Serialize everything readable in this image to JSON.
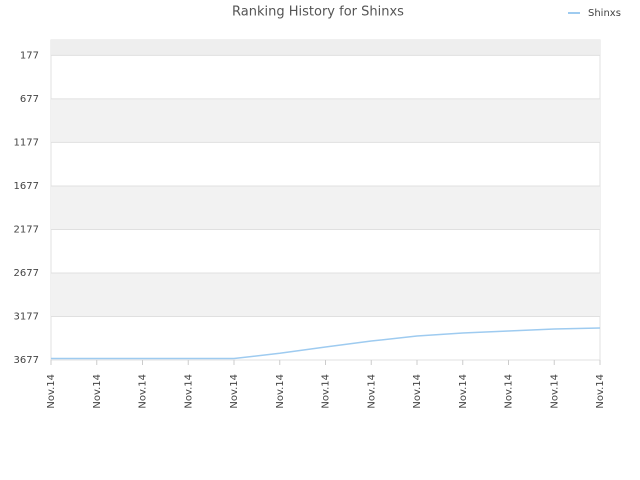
{
  "chart_data": {
    "type": "line",
    "title": "Ranking History for Shinxs",
    "categories": [
      "Nov.14",
      "Nov.14",
      "Nov.14",
      "Nov.14",
      "Nov.14",
      "Nov.14",
      "Nov.14",
      "Nov.14",
      "Nov.14",
      "Nov.14",
      "Nov.14",
      "Nov.14",
      "Nov.14"
    ],
    "series": [
      {
        "name": "Shinxs",
        "color": "#9ecbf0",
        "values": [
          3660,
          3660,
          3660,
          3660,
          3660,
          3600,
          3528,
          3459,
          3401,
          3367,
          3344,
          3321,
          3309
        ]
      }
    ],
    "ylim": [
      3677,
      0
    ],
    "yticks": [
      177,
      677,
      1177,
      1677,
      2177,
      2677,
      3177,
      3677
    ],
    "grid": true,
    "legend": "top-right"
  }
}
